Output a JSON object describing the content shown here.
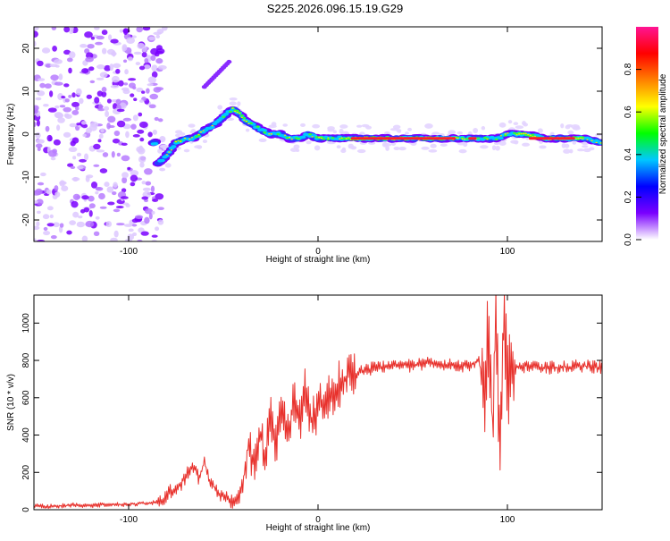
{
  "title": "S225.2026.096.15.19.G29",
  "chart_data": [
    {
      "type": "heatmap",
      "xlabel": "Height of straight line (km)",
      "ylabel": "Frequency (Hz)",
      "xlim": [
        -150,
        150
      ],
      "ylim": [
        -25,
        25
      ],
      "xticks": [
        -100,
        0,
        100
      ],
      "yticks": [
        -20,
        -10,
        0,
        10,
        20
      ],
      "colorbar": {
        "label": "Normalized spectral amplitude",
        "range": [
          0.0,
          1.0
        ],
        "ticks": [
          0.0,
          0.2,
          0.4,
          0.6,
          0.8
        ],
        "colors": [
          "#ffffff",
          "#7a00ff",
          "#0000ff",
          "#00c8ff",
          "#00ff00",
          "#ffff00",
          "#ff8000",
          "#ff0000",
          "#ff1493"
        ]
      },
      "trace": {
        "x": [
          -85,
          -80,
          -75,
          -70,
          -65,
          -60,
          -55,
          -50,
          -45,
          -42,
          -38,
          -34,
          -30,
          -25,
          -20,
          -15,
          -10,
          -5,
          0,
          10,
          20,
          30,
          40,
          50,
          60,
          70,
          80,
          85,
          90,
          95,
          100,
          110,
          120,
          130,
          140,
          150
        ],
        "freq": [
          -7,
          -5,
          -2,
          -1,
          -1,
          1,
          2,
          4,
          6,
          5,
          3,
          2,
          1,
          0,
          0,
          -1,
          -1,
          0,
          -1,
          -1,
          -1,
          -1,
          -1,
          -1,
          -1,
          -1,
          -1,
          -1,
          -1,
          -1,
          0,
          0,
          -1,
          -1,
          -1,
          -2
        ]
      },
      "noise_region_x": [
        -150,
        -85
      ]
    },
    {
      "type": "line",
      "xlabel": "Height of straight line (km)",
      "ylabel": "SNR (10 * v/v)",
      "xlim": [
        -150,
        150
      ],
      "ylim": [
        0,
        1150
      ],
      "xticks": [
        -100,
        0,
        100
      ],
      "yticks": [
        0,
        200,
        400,
        600,
        800,
        1000
      ],
      "color": "#e8322d",
      "series": [
        {
          "name": "SNR",
          "x": [
            -150,
            -140,
            -130,
            -120,
            -110,
            -100,
            -90,
            -85,
            -80,
            -75,
            -70,
            -66,
            -63,
            -60,
            -57,
            -54,
            -51,
            -48,
            -45,
            -42,
            -40,
            -37,
            -34,
            -31,
            -28,
            -25,
            -22,
            -19,
            -16,
            -13,
            -10,
            -7,
            -4,
            -1,
            2,
            5,
            10,
            15,
            20,
            25,
            30,
            35,
            40,
            50,
            60,
            70,
            80,
            85,
            88,
            90,
            92,
            94,
            96,
            98,
            100,
            102,
            104,
            110,
            120,
            130,
            140,
            150
          ],
          "values": [
            20,
            18,
            25,
            22,
            30,
            28,
            35,
            40,
            70,
            120,
            170,
            240,
            160,
            260,
            150,
            110,
            80,
            60,
            50,
            65,
            130,
            330,
            250,
            420,
            300,
            500,
            350,
            560,
            400,
            600,
            450,
            640,
            480,
            520,
            560,
            600,
            660,
            710,
            730,
            750,
            760,
            770,
            780,
            770,
            790,
            775,
            770,
            800,
            600,
            1000,
            450,
            1080,
            350,
            1100,
            650,
            780,
            760,
            770,
            760,
            765,
            770,
            760
          ]
        }
      ]
    }
  ]
}
